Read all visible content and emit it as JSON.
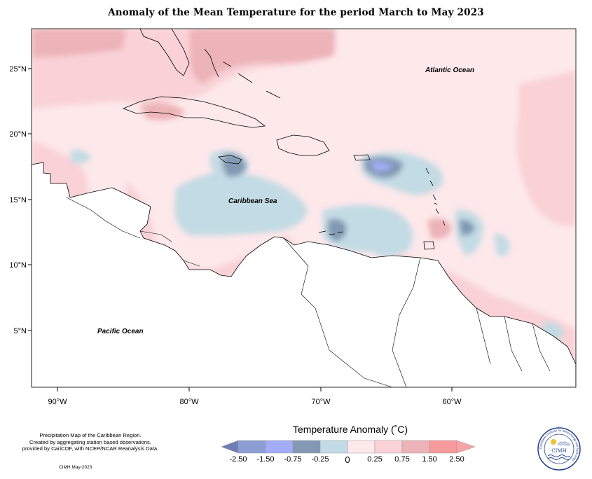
{
  "title": "Anomaly of the Mean Temperature for the period March to May 2023",
  "map": {
    "ocean_labels": [
      "Atlantic Ocean",
      "Caribbean Sea",
      "Pacific Ocean"
    ],
    "lat_ticks": [
      "25°N",
      "20°N",
      "15°N",
      "10°N",
      "5°N"
    ],
    "lon_ticks": [
      "90°W",
      "80°W",
      "70°W",
      "60°W"
    ]
  },
  "legend": {
    "title": "Temperature Anomaly (˚C)",
    "tick_labels": [
      "-2.50",
      "-1.50",
      "-0.75",
      "-0.25",
      "0",
      "0.25",
      "0.75",
      "1.50",
      "2.50"
    ],
    "colors": [
      "#6f7fb5",
      "#8c9ed3",
      "#a3adf7",
      "#8298b3",
      "#c3dbe4",
      "#fde8ea",
      "#f9d1d7",
      "#ecb3b8",
      "#f79a9c",
      "#f7a3a8"
    ]
  },
  "notes": {
    "line1": "Precipitation Map of the Caribbean Region.",
    "line2": "Created by aggregating station based observations,",
    "line3": "provided by CariCOF, with NCEP/NCAR Reanalysis Data.",
    "date": "CIMH May-2023"
  },
  "logo": {
    "ring_text": "Caribbean Institute for Meteorology and Hydrology",
    "initials": "CIMH"
  }
}
